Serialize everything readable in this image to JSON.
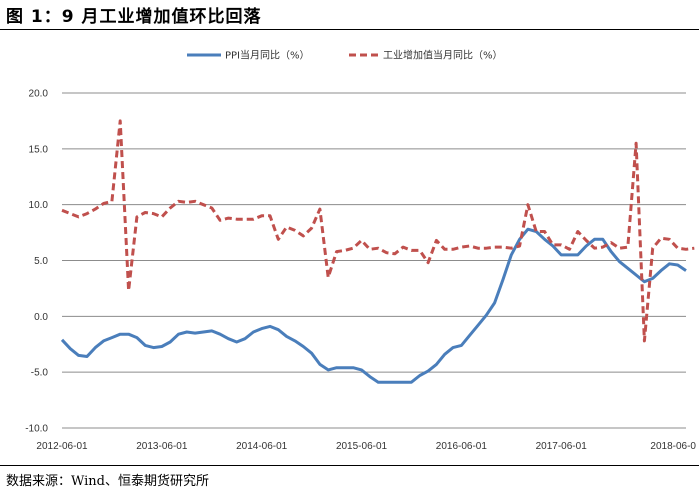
{
  "title": "图 1：9 月工业增加值环比回落",
  "source": "数据来源：Wind、恒泰期货研究所",
  "chart_data": {
    "type": "line",
    "ylim": [
      -10,
      20
    ],
    "yticks": [
      "20.0",
      "15.0",
      "10.0",
      "5.0",
      "0.0",
      "-5.0",
      "-10.0"
    ],
    "xticks": [
      "2012-06-01",
      "2013-06-01",
      "2014-06-01",
      "2015-06-01",
      "2016-06-01",
      "2017-06-01",
      "2018-06-0"
    ],
    "grid": true,
    "legend_position": "top-center",
    "x_start": "2012-06",
    "x_end": "2018-10",
    "series": [
      {
        "name": "PPI当月同比（%）",
        "color": "#4a7ebb",
        "style": "solid",
        "values": [
          -2.1,
          -2.9,
          -3.5,
          -3.6,
          -2.8,
          -2.2,
          -1.9,
          -1.6,
          -1.6,
          -1.9,
          -2.6,
          -2.8,
          -2.7,
          -2.3,
          -1.6,
          -1.4,
          -1.5,
          -1.4,
          -1.3,
          -1.6,
          -2.0,
          -2.3,
          -2.0,
          -1.4,
          -1.1,
          -0.9,
          -1.2,
          -1.8,
          -2.2,
          -2.7,
          -3.3,
          -4.3,
          -4.8,
          -4.6,
          -4.6,
          -4.6,
          -4.8,
          -5.4,
          -5.9,
          -5.9,
          -5.9,
          -5.9,
          -5.9,
          -5.3,
          -4.9,
          -4.3,
          -3.4,
          -2.8,
          -2.6,
          -1.7,
          -0.8,
          0.1,
          1.2,
          3.3,
          5.5,
          6.9,
          7.8,
          7.6,
          6.9,
          6.3,
          5.5,
          5.5,
          5.5,
          6.3,
          6.9,
          6.9,
          5.8,
          4.9,
          4.3,
          3.7,
          3.1,
          3.4,
          4.1,
          4.7,
          4.6,
          4.1
        ]
      },
      {
        "name": "工业增加值当月同比（%）",
        "color": "#c0504d",
        "style": "dashed",
        "values": [
          9.5,
          9.2,
          8.9,
          9.2,
          9.6,
          10.1,
          10.3,
          17.5,
          2.3,
          8.9,
          9.3,
          9.2,
          8.9,
          9.7,
          10.3,
          10.2,
          10.3,
          10.0,
          9.7,
          8.6,
          8.8,
          8.7,
          8.7,
          8.7,
          9.0,
          9.0,
          6.9,
          8.0,
          7.7,
          7.2,
          7.9,
          9.6,
          3.5,
          5.8,
          5.9,
          6.1,
          6.8,
          6.0,
          6.1,
          5.7,
          5.6,
          6.2,
          5.9,
          5.9,
          4.8,
          6.8,
          6.0,
          6.0,
          6.2,
          6.3,
          6.1,
          6.1,
          6.2,
          6.2,
          6.1,
          6.3,
          10.0,
          7.6,
          7.6,
          6.4,
          6.4,
          6.0,
          7.6,
          6.8,
          6.1,
          6.2,
          6.6,
          6.1,
          6.2,
          15.5,
          -2.2,
          6.1,
          7.0,
          6.9,
          6.1,
          6.0,
          6.1
        ]
      }
    ]
  }
}
